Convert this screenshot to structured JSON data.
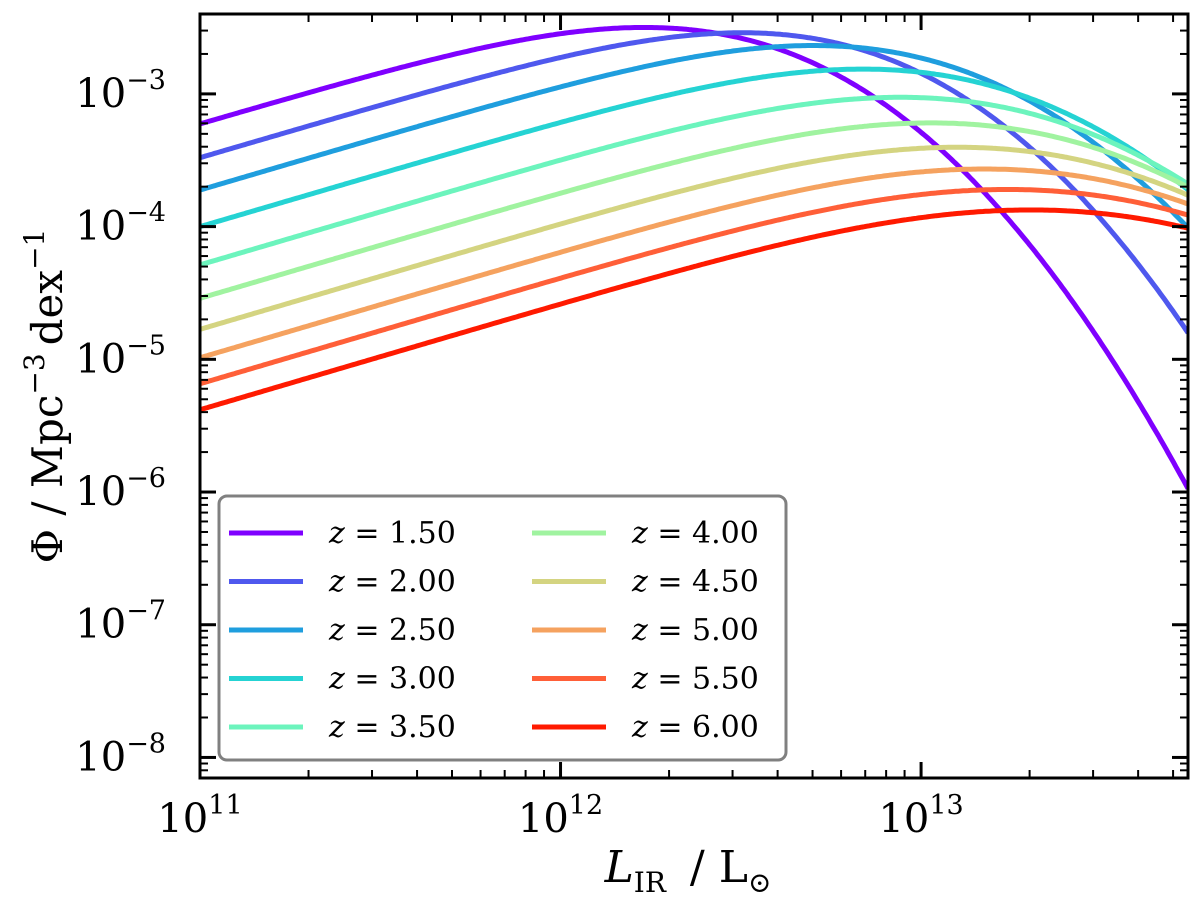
{
  "chart_data": {
    "type": "line",
    "title": "",
    "xlabel": {
      "main": "L",
      "sub": "IR",
      "unit": "L",
      "unit_symbol": "⊙"
    },
    "ylabel": {
      "main": "Φ",
      "unit": "Mpc",
      "unit_exp": "−3",
      "unit2": "dex",
      "unit2_exp": "−1"
    },
    "x_scale": "log",
    "y_scale": "log",
    "xlim": [
      100000000000.0,
      55000000000000.0
    ],
    "ylim": [
      7e-09,
      0.004
    ],
    "x_ticks": [
      {
        "value": 100000000000.0,
        "base": "10",
        "exp": "11"
      },
      {
        "value": 1000000000000.0,
        "base": "10",
        "exp": "12"
      },
      {
        "value": 10000000000000.0,
        "base": "10",
        "exp": "13"
      }
    ],
    "y_ticks": [
      {
        "value": 1e-08,
        "base": "10",
        "exp": "−8"
      },
      {
        "value": 1e-07,
        "base": "10",
        "exp": "−7"
      },
      {
        "value": 1e-06,
        "base": "10",
        "exp": "−6"
      },
      {
        "value": 1e-05,
        "base": "10",
        "exp": "−5"
      },
      {
        "value": 0.0001,
        "base": "10",
        "exp": "−4"
      },
      {
        "value": 0.001,
        "base": "10",
        "exp": "−3"
      }
    ],
    "legend": {
      "placement": "lower-left",
      "columns": 2,
      "var": "z",
      "eq": " = "
    },
    "series": [
      {
        "name": "1.50",
        "color": "#7f00ff",
        "log_phi_star": -2.36,
        "log_L_star": 12.08,
        "alpha": 0.2,
        "sigma": 0.35
      },
      {
        "name": "2.00",
        "color": "#4f58ee",
        "log_phi_star": -2.4,
        "log_L_star": 12.35,
        "alpha": 0.2,
        "sigma": 0.35
      },
      {
        "name": "2.50",
        "color": "#1f9ede",
        "log_phi_star": -2.54,
        "log_L_star": 12.48,
        "alpha": 0.2,
        "sigma": 0.38
      },
      {
        "name": "3.00",
        "color": "#25d3d3",
        "log_phi_star": -2.76,
        "log_L_star": 12.55,
        "alpha": 0.2,
        "sigma": 0.41
      },
      {
        "name": "3.50",
        "color": "#6cf4bd",
        "log_phi_star": -3.0,
        "log_L_star": 12.61,
        "alpha": 0.2,
        "sigma": 0.43
      },
      {
        "name": "4.00",
        "color": "#a0f3a0",
        "log_phi_star": -3.22,
        "log_L_star": 12.65,
        "alpha": 0.2,
        "sigma": 0.45
      },
      {
        "name": "4.50",
        "color": "#d4d481",
        "log_phi_star": -3.43,
        "log_L_star": 12.68,
        "alpha": 0.2,
        "sigma": 0.47
      },
      {
        "name": "5.00",
        "color": "#f5a25f",
        "log_phi_star": -3.62,
        "log_L_star": 12.71,
        "alpha": 0.2,
        "sigma": 0.49
      },
      {
        "name": "5.50",
        "color": "#ff5f38",
        "log_phi_star": -3.8,
        "log_L_star": 12.73,
        "alpha": 0.2,
        "sigma": 0.51
      },
      {
        "name": "6.00",
        "color": "#ff1a00",
        "log_phi_star": -3.98,
        "log_L_star": 12.75,
        "alpha": 0.2,
        "sigma": 0.53
      }
    ]
  }
}
